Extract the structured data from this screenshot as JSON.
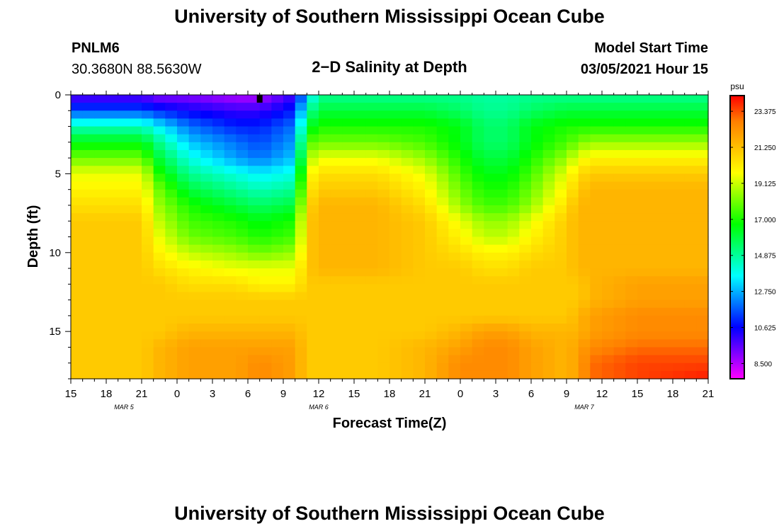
{
  "header": {
    "title_top": "University of Southern Mississippi Ocean Cube",
    "title_bottom": "University of Southern Mississippi Ocean Cube",
    "station_id": "PNLM6",
    "station_coords": "30.3680N 88.5630W",
    "model_start_label": "Model Start Time",
    "model_start_value": "03/05/2021 Hour 15"
  },
  "chart_data": {
    "type": "heatmap",
    "title": "2−D Salinity at Depth",
    "xlabel": "Forecast Time(Z)",
    "ylabel": "Depth (ft)",
    "x_range_hours": [
      0,
      54
    ],
    "y_range_ft": [
      0,
      18
    ],
    "y_inverted": true,
    "x_tick_labels": [
      "15",
      "18",
      "21",
      "0",
      "3",
      "6",
      "9",
      "12",
      "15",
      "18",
      "21",
      "0",
      "3",
      "6",
      "9",
      "12",
      "15",
      "18",
      "21"
    ],
    "y_tick_labels": [
      "0",
      "5",
      "10",
      "15"
    ],
    "y_tick_values": [
      0,
      5,
      10,
      15
    ],
    "date_labels": [
      {
        "text": "MAR 5",
        "hour": 4.5
      },
      {
        "text": "MAR 6",
        "hour": 21
      },
      {
        "text": "MAR 7",
        "hour": 43.5
      }
    ],
    "colorbar": {
      "unit": "psu",
      "min": 7.6,
      "max": 24.3,
      "tick_values": [
        23.375,
        21.25,
        19.125,
        17.0,
        14.875,
        12.75,
        10.625,
        8.5
      ],
      "tick_labels": [
        "23.375",
        "21.250",
        "19.125",
        "17.000",
        "14.875",
        "12.750",
        "10.625",
        "8.500"
      ],
      "colors": [
        "#ff00ff",
        "#7f00ff",
        "#0000ff",
        "#007fff",
        "#00ffff",
        "#00ff7f",
        "#00ff00",
        "#7fff00",
        "#ffff00",
        "#ffbf00",
        "#ff7f00",
        "#ff0000"
      ]
    },
    "grid": {
      "x_step_hours": 1,
      "y_step_ft": 0.5,
      "time_hours": [
        0,
        6,
        7.5,
        10,
        14,
        16,
        19,
        20,
        21,
        22,
        26,
        30,
        33,
        35,
        37,
        39,
        42,
        43,
        44,
        48,
        54
      ],
      "depth_ft": [
        0,
        1,
        2,
        3,
        4,
        5,
        6,
        7,
        8,
        9,
        10,
        11,
        12,
        13,
        14,
        15,
        16,
        17,
        18
      ],
      "salinity_psu": [
        [
          9.5,
          9.5,
          9.0,
          9.0,
          8.5,
          8.5,
          10.0,
          13.0,
          15.0,
          15.0,
          15.0,
          15.0,
          15.0,
          14.8,
          14.8,
          15.0,
          15.0,
          15.0,
          15.0,
          15.0,
          15.0
        ],
        [
          11.5,
          11.5,
          11.0,
          10.5,
          10.0,
          10.0,
          11.0,
          14.5,
          16.0,
          16.0,
          16.0,
          16.0,
          15.5,
          15.0,
          15.0,
          15.5,
          16.0,
          16.0,
          16.0,
          16.0,
          16.0
        ],
        [
          14.5,
          14.5,
          13.5,
          12.0,
          11.0,
          11.0,
          12.0,
          16.0,
          17.0,
          17.0,
          17.0,
          17.0,
          16.5,
          15.5,
          15.5,
          16.5,
          17.0,
          17.0,
          17.0,
          17.0,
          17.0
        ],
        [
          16.5,
          16.5,
          15.0,
          13.0,
          12.0,
          11.5,
          12.5,
          17.5,
          18.0,
          18.0,
          18.0,
          17.5,
          16.5,
          15.5,
          15.5,
          16.5,
          17.5,
          18.0,
          18.5,
          18.5,
          18.5
        ],
        [
          18.0,
          18.0,
          16.0,
          14.0,
          12.5,
          12.0,
          13.0,
          18.5,
          19.5,
          19.5,
          19.5,
          18.5,
          17.0,
          16.0,
          16.0,
          17.0,
          18.5,
          19.5,
          20.0,
          20.0,
          20.0
        ],
        [
          19.5,
          19.5,
          17.0,
          15.0,
          14.0,
          13.5,
          14.0,
          19.5,
          20.5,
          20.5,
          20.5,
          19.5,
          17.5,
          16.5,
          16.5,
          17.5,
          19.5,
          20.5,
          21.0,
          21.0,
          21.0
        ],
        [
          20.0,
          20.0,
          18.0,
          16.0,
          15.0,
          14.5,
          15.0,
          20.0,
          21.0,
          21.0,
          21.0,
          20.0,
          18.0,
          17.0,
          17.0,
          18.0,
          20.0,
          21.0,
          21.5,
          21.5,
          21.5
        ],
        [
          20.5,
          20.5,
          18.5,
          17.0,
          16.0,
          15.5,
          16.0,
          20.5,
          21.5,
          21.5,
          21.5,
          20.5,
          18.5,
          17.5,
          17.5,
          18.5,
          20.5,
          21.5,
          21.5,
          21.5,
          21.5
        ],
        [
          21.0,
          21.0,
          19.0,
          17.5,
          17.0,
          16.5,
          17.0,
          21.0,
          21.5,
          21.5,
          21.5,
          21.0,
          19.5,
          18.5,
          18.5,
          19.5,
          21.0,
          21.5,
          21.5,
          21.5,
          21.5
        ],
        [
          21.0,
          21.0,
          19.5,
          18.0,
          17.5,
          17.0,
          17.5,
          21.0,
          21.5,
          21.5,
          21.5,
          21.0,
          20.0,
          19.0,
          19.0,
          20.0,
          21.0,
          21.5,
          21.5,
          21.5,
          21.5
        ],
        [
          21.0,
          21.0,
          20.0,
          19.0,
          18.5,
          18.0,
          18.5,
          21.0,
          21.5,
          21.5,
          21.5,
          21.0,
          20.5,
          20.0,
          20.0,
          20.5,
          21.0,
          21.5,
          21.5,
          21.5,
          21.5
        ],
        [
          21.0,
          21.0,
          20.5,
          20.0,
          19.5,
          19.5,
          19.5,
          21.0,
          21.5,
          21.5,
          21.5,
          21.0,
          21.0,
          20.5,
          20.5,
          21.0,
          21.0,
          21.5,
          21.5,
          21.5,
          21.5
        ],
        [
          21.0,
          21.0,
          21.0,
          20.5,
          20.5,
          20.0,
          20.0,
          21.0,
          21.0,
          21.0,
          21.0,
          21.0,
          21.0,
          21.0,
          21.0,
          21.0,
          21.0,
          21.0,
          21.5,
          22.0,
          22.0
        ],
        [
          21.0,
          21.0,
          21.0,
          21.0,
          21.0,
          21.0,
          21.0,
          21.0,
          21.0,
          21.0,
          21.0,
          21.0,
          21.0,
          21.0,
          21.0,
          21.0,
          21.0,
          21.0,
          21.5,
          22.0,
          22.0
        ],
        [
          21.0,
          21.0,
          21.0,
          21.0,
          21.0,
          21.0,
          21.0,
          21.0,
          21.0,
          21.0,
          21.0,
          21.0,
          21.0,
          21.0,
          21.0,
          21.0,
          21.0,
          21.5,
          22.0,
          22.5,
          22.5
        ],
        [
          21.0,
          21.0,
          21.0,
          21.5,
          21.5,
          21.5,
          21.5,
          21.0,
          21.0,
          21.0,
          21.0,
          21.0,
          21.5,
          22.0,
          22.0,
          21.5,
          21.5,
          21.5,
          22.0,
          22.5,
          22.5
        ],
        [
          21.0,
          21.0,
          21.5,
          22.0,
          22.0,
          22.0,
          22.0,
          21.0,
          21.0,
          21.0,
          21.0,
          21.5,
          22.0,
          22.5,
          22.5,
          22.0,
          21.5,
          22.0,
          22.5,
          23.0,
          23.0
        ],
        [
          21.0,
          21.0,
          21.5,
          22.0,
          22.0,
          22.5,
          22.0,
          21.0,
          21.0,
          21.0,
          21.0,
          21.5,
          22.5,
          22.5,
          22.5,
          22.0,
          21.5,
          22.0,
          23.0,
          23.5,
          23.5
        ],
        [
          21.0,
          21.0,
          21.5,
          22.0,
          22.0,
          22.5,
          22.0,
          21.0,
          21.0,
          21.0,
          21.0,
          21.5,
          22.5,
          22.5,
          22.5,
          22.0,
          21.5,
          22.0,
          23.0,
          23.5,
          24.0
        ]
      ]
    },
    "marker": {
      "hour": 16,
      "depth_ft": 0.1
    }
  }
}
